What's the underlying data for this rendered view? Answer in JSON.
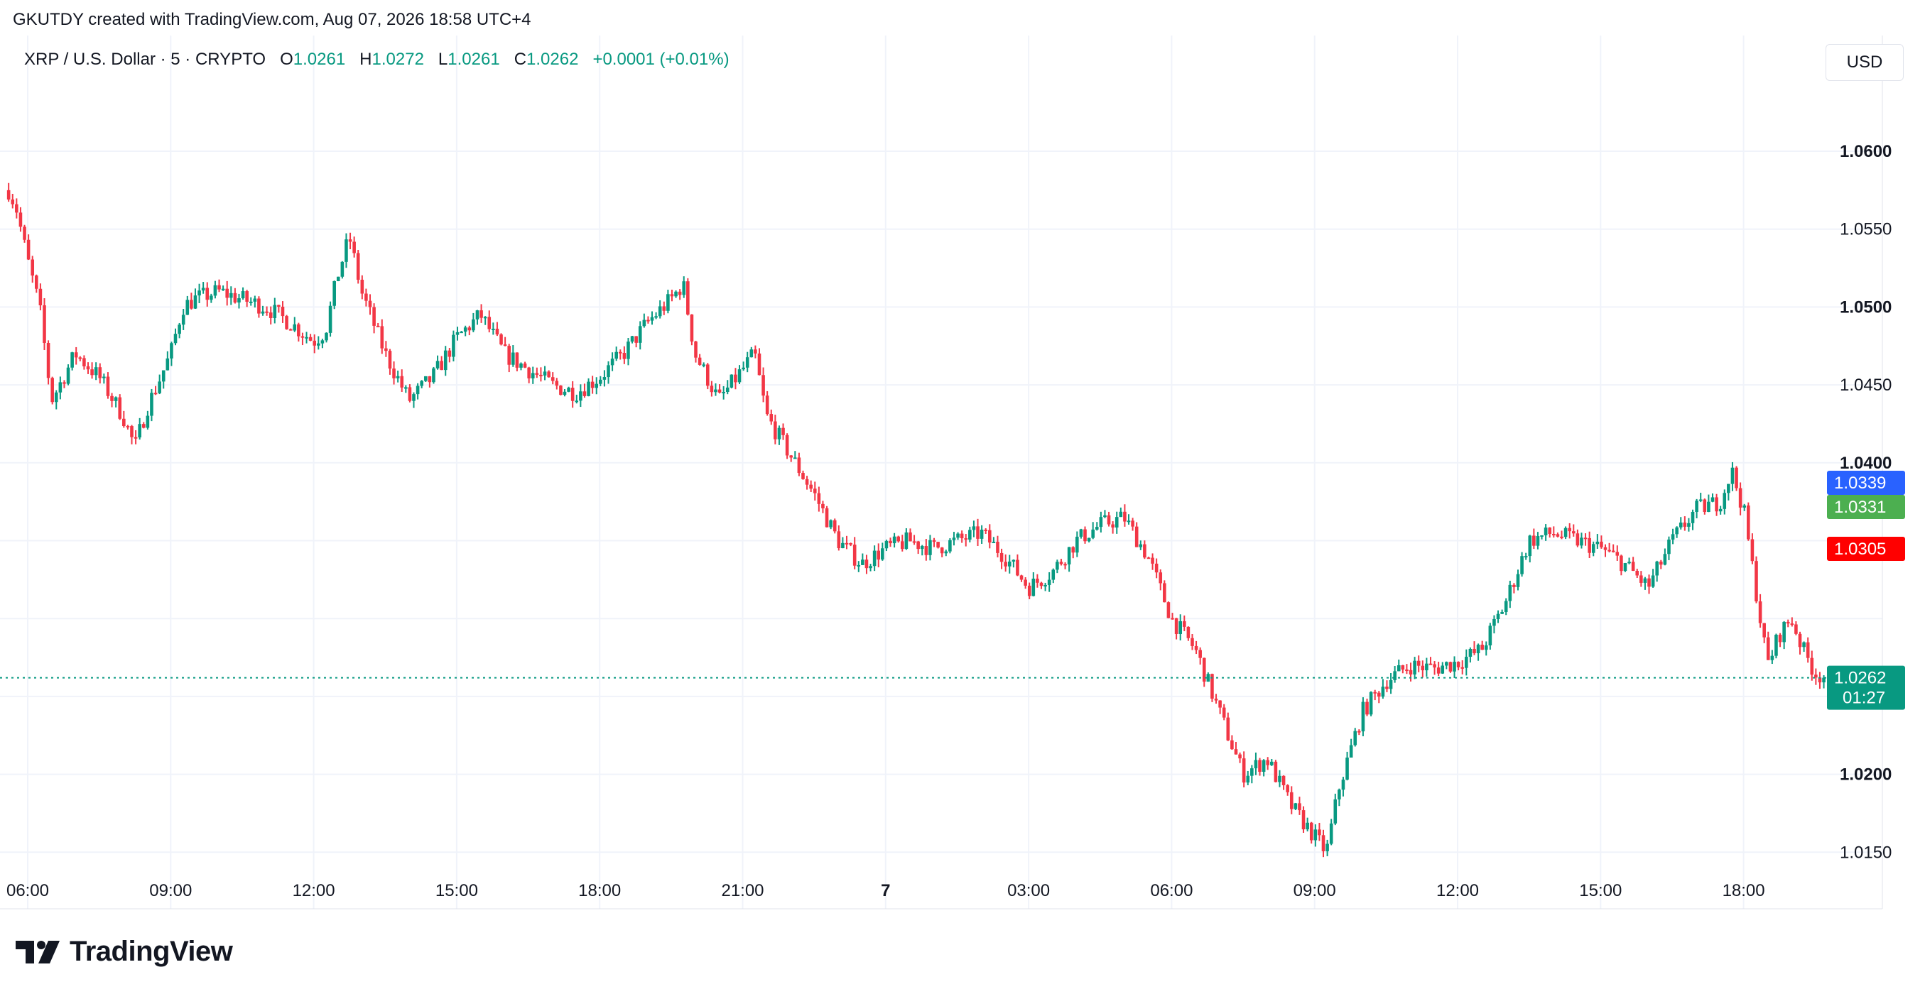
{
  "caption": "GKUTDY created with TradingView.com, Aug 07, 2026 18:58 UTC+4",
  "legend": {
    "symbol": "XRP / U.S. Dollar · 5 · CRYPTO",
    "o_label": "O",
    "o_value": "1.0261",
    "h_label": "H",
    "h_value": "1.0272",
    "l_label": "L",
    "l_value": "1.0261",
    "c_label": "C",
    "c_value": "1.0262",
    "change": "+0.0001 (+0.01%)"
  },
  "currency_button": "USD",
  "branding": {
    "logo_text": "TradingView",
    "logo_icon": "tradingview-logo-icon"
  },
  "price_tags": {
    "blue": "1.0339",
    "green": "1.0331",
    "red": "1.0305",
    "last": "1.0262",
    "countdown": "01:27"
  },
  "colors": {
    "up": "#089981",
    "down": "#f23645",
    "grid": "#f0f3fa",
    "tag_blue": "#2962ff",
    "tag_green": "#4caf50",
    "tag_red": "#ff0000",
    "tag_last": "#089981"
  },
  "chart_data": {
    "type": "candlestick",
    "interval": "5",
    "ylim": [
      1.01,
      1.062
    ],
    "y_ticks": [
      "1.0600",
      "1.0550",
      "1.0500",
      "1.0450",
      "1.0400",
      "1.0200",
      "1.0150"
    ],
    "x_ticks": [
      "06:00",
      "09:00",
      "12:00",
      "15:00",
      "18:00",
      "21:00",
      "7",
      "03:00",
      "06:00",
      "09:00",
      "12:00",
      "15:00",
      "18:00"
    ],
    "last_price": 1.0262,
    "path_hours": [
      5.6,
      5.75,
      6.0,
      6.25,
      6.5,
      7.0,
      7.5,
      8.0,
      8.25,
      8.5,
      9.0,
      9.25,
      9.5,
      10.0,
      10.5,
      11.0,
      11.5,
      12.0,
      12.25,
      12.5,
      12.75,
      13.0,
      13.5,
      14.0,
      14.5,
      15.0,
      15.5,
      16.0,
      16.5,
      17.0,
      17.5,
      18.0,
      18.5,
      19.0,
      19.5,
      19.75,
      20.0,
      20.5,
      21.0,
      21.25,
      21.5,
      22.0,
      22.5,
      23.0,
      23.5,
      24.0,
      24.5,
      25.0,
      25.5,
      26.0,
      26.5,
      27.0,
      27.5,
      28.0,
      28.5,
      29.0,
      29.5,
      30.0,
      30.5,
      31.0,
      31.5,
      32.0,
      32.5,
      33.0,
      33.25,
      33.5,
      34.0,
      34.5,
      35.0,
      35.5,
      36.0,
      36.5,
      37.0,
      37.5,
      38.0,
      38.5,
      39.0,
      39.5,
      40.0,
      40.5,
      41.0,
      41.5,
      41.75,
      42.0,
      42.25,
      42.5,
      42.75,
      43.0,
      43.25,
      43.5,
      43.75
    ],
    "path_prices": [
      1.0575,
      1.0565,
      1.053,
      1.05,
      1.044,
      1.047,
      1.0455,
      1.043,
      1.041,
      1.0435,
      1.047,
      1.05,
      1.0505,
      1.051,
      1.0505,
      1.05,
      1.049,
      1.0478,
      1.0485,
      1.052,
      1.0545,
      1.051,
      1.047,
      1.044,
      1.0455,
      1.048,
      1.0495,
      1.047,
      1.046,
      1.045,
      1.0445,
      1.0455,
      1.047,
      1.049,
      1.0505,
      1.0515,
      1.047,
      1.044,
      1.046,
      1.047,
      1.043,
      1.0405,
      1.038,
      1.035,
      1.0335,
      1.0345,
      1.035,
      1.0345,
      1.035,
      1.0355,
      1.034,
      1.032,
      1.033,
      1.035,
      1.036,
      1.0365,
      1.034,
      1.03,
      1.028,
      1.024,
      1.02,
      1.021,
      1.018,
      1.016,
      1.015,
      1.019,
      1.024,
      1.026,
      1.027,
      1.0268,
      1.0272,
      1.028,
      1.031,
      1.035,
      1.0355,
      1.035,
      1.0345,
      1.0335,
      1.032,
      1.035,
      1.037,
      1.0375,
      1.0395,
      1.037,
      1.032,
      1.027,
      1.029,
      1.03,
      1.028,
      1.0265,
      1.0262
    ]
  }
}
